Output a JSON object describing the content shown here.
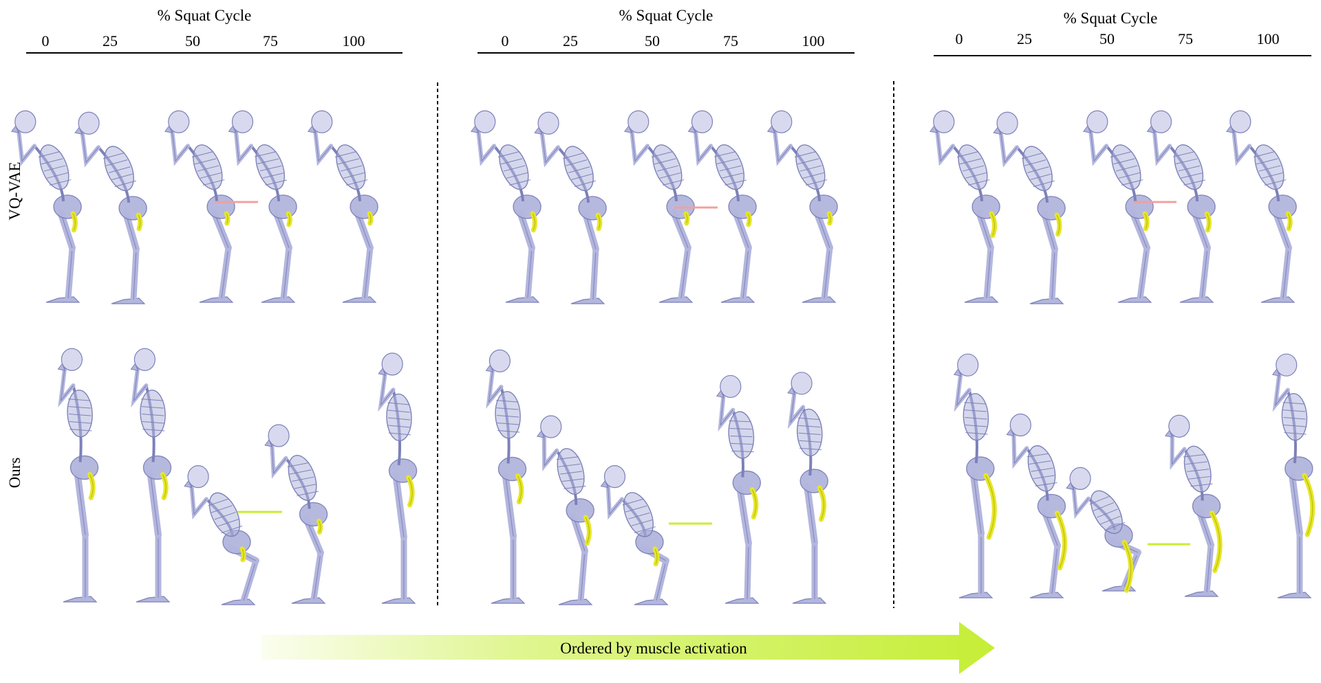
{
  "axis": {
    "title": "% Squat Cycle",
    "ticks": [
      "0",
      "25",
      "50",
      "75",
      "100"
    ]
  },
  "rows": [
    {
      "label": "VQ-VAE"
    },
    {
      "label": "Ours"
    }
  ],
  "arrow": {
    "label": "Ordered by muscle activation"
  },
  "colors": {
    "bone": "#b3b6dd",
    "bone_edge": "#7d81b8",
    "skull": "#d8d9ee",
    "muscle": "#e6e62a",
    "vqvae_marker": "#f0a0a0",
    "ours_marker": "#c8ee30",
    "arrow": "#c6ee36"
  }
}
